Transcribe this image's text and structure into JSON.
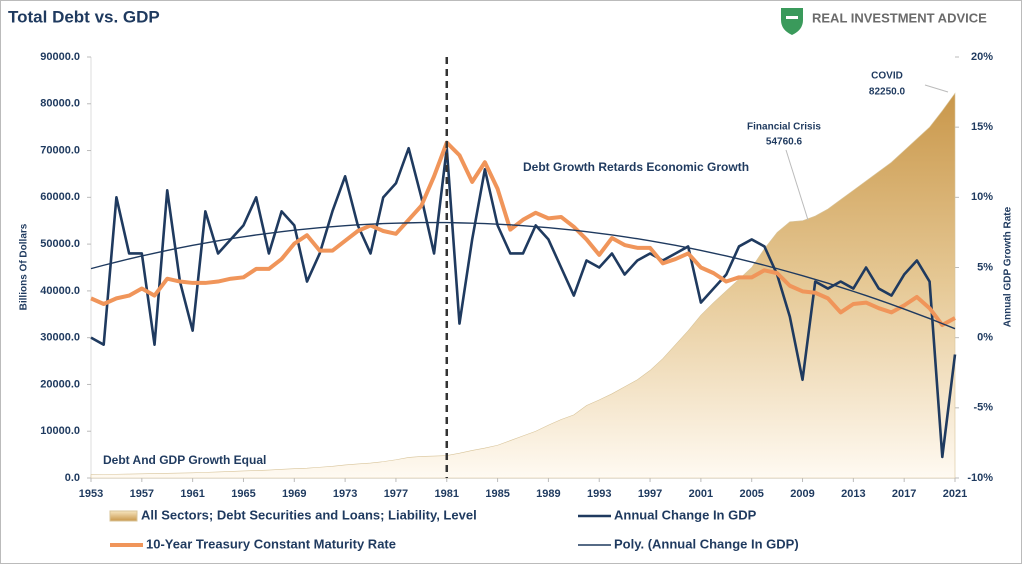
{
  "chart_data": {
    "type": "line",
    "title": "Total Debt vs. GDP",
    "brand": "REAL INVESTMENT ADVICE",
    "ylabel": "Billions Of Dollars",
    "y2label": "Annual GDP Growth Rate",
    "x": [
      1953,
      1954,
      1955,
      1956,
      1957,
      1958,
      1959,
      1960,
      1961,
      1962,
      1963,
      1964,
      1965,
      1966,
      1967,
      1968,
      1969,
      1970,
      1971,
      1972,
      1973,
      1974,
      1975,
      1976,
      1977,
      1978,
      1979,
      1980,
      1981,
      1982,
      1983,
      1984,
      1985,
      1986,
      1987,
      1988,
      1989,
      1990,
      1991,
      1992,
      1993,
      1994,
      1995,
      1996,
      1997,
      1998,
      1999,
      2000,
      2001,
      2002,
      2003,
      2004,
      2005,
      2006,
      2007,
      2008,
      2009,
      2010,
      2011,
      2012,
      2013,
      2014,
      2015,
      2016,
      2017,
      2018,
      2019,
      2020,
      2021
    ],
    "xlim": [
      1953,
      2021
    ],
    "xticks": [
      1953,
      1957,
      1961,
      1965,
      1969,
      1973,
      1977,
      1981,
      1985,
      1989,
      1993,
      1997,
      2001,
      2005,
      2009,
      2013,
      2017,
      2021
    ],
    "ylim": [
      0,
      90000
    ],
    "yticks": [
      {
        "value": 0,
        "label": "0.0"
      },
      {
        "value": 10000,
        "label": "10000.0"
      },
      {
        "value": 20000,
        "label": "20000.0"
      },
      {
        "value": 30000,
        "label": "30000.0"
      },
      {
        "value": 40000,
        "label": "40000.0"
      },
      {
        "value": 50000,
        "label": "50000.0"
      },
      {
        "value": 60000,
        "label": "60000.0"
      },
      {
        "value": 70000,
        "label": "70000.0"
      },
      {
        "value": 80000,
        "label": "80000.0"
      },
      {
        "value": 90000,
        "label": "90000.0"
      }
    ],
    "y2lim": [
      -10,
      20
    ],
    "y2ticks": [
      {
        "value": -10,
        "label": "-10%"
      },
      {
        "value": -5,
        "label": "-5%"
      },
      {
        "value": 0,
        "label": "0%"
      },
      {
        "value": 5,
        "label": "5%"
      },
      {
        "value": 10,
        "label": "10%"
      },
      {
        "value": 15,
        "label": "15%"
      },
      {
        "value": 20,
        "label": "20%"
      }
    ],
    "reference_x": 1981,
    "series": [
      {
        "name": "All Sectors; Debt Securities and Loans; Liability, Level",
        "type": "area",
        "color": "#c99a4a",
        "values": [
          700,
          750,
          800,
          850,
          900,
          950,
          1000,
          1050,
          1100,
          1200,
          1300,
          1400,
          1500,
          1600,
          1700,
          1850,
          2000,
          2100,
          2300,
          2500,
          2800,
          3000,
          3200,
          3500,
          3900,
          4400,
          4600,
          4700,
          4800,
          5300,
          5900,
          6400,
          7000,
          8000,
          9000,
          10000,
          11300,
          12500,
          13500,
          15500,
          16700,
          18000,
          19500,
          21000,
          23000,
          25500,
          28500,
          31500,
          34800,
          37500,
          40000,
          42500,
          45000,
          49000,
          52500,
          54760.6,
          55000,
          56000,
          57500,
          59500,
          61500,
          63500,
          65500,
          67500,
          70000,
          72500,
          75000,
          78500,
          82250
        ]
      },
      {
        "name": "Annual Change In GDP",
        "type": "line",
        "axis": "y2",
        "color": "#1f3a5f",
        "width": 2.6,
        "values": [
          0,
          -0.5,
          10,
          6,
          6,
          -0.5,
          10.5,
          4,
          0.5,
          9,
          6,
          7,
          8,
          10,
          6,
          9,
          8,
          4,
          6,
          9,
          11.5,
          8,
          6,
          10,
          11,
          13.5,
          10,
          6,
          13.5,
          1,
          7,
          12,
          8,
          6,
          6,
          8,
          7,
          5,
          3,
          5.5,
          5,
          6,
          4.5,
          5.5,
          6,
          5.5,
          6,
          6.5,
          2.5,
          3.5,
          4.5,
          6.5,
          7,
          6.5,
          4.5,
          1.5,
          -3,
          4,
          3.5,
          4,
          3.5,
          5,
          3.5,
          3,
          4.5,
          5.5,
          4,
          -8.5,
          -1.2
        ]
      },
      {
        "name": "10-Year Treasury Constant Maturity Rate",
        "type": "line",
        "axis": "y2",
        "color": "#f0955a",
        "width": 4,
        "values": [
          2.8,
          2.4,
          2.8,
          3.0,
          3.5,
          3.0,
          4.2,
          4.0,
          3.9,
          3.9,
          4.0,
          4.2,
          4.3,
          4.9,
          4.9,
          5.6,
          6.7,
          7.3,
          6.2,
          6.2,
          6.9,
          7.6,
          8.0,
          7.6,
          7.4,
          8.4,
          9.4,
          11.5,
          13.9,
          13.0,
          11.1,
          12.5,
          10.6,
          7.7,
          8.4,
          8.9,
          8.5,
          8.6,
          7.9,
          7.0,
          5.9,
          7.1,
          6.6,
          6.4,
          6.4,
          5.3,
          5.6,
          6.0,
          5.0,
          4.6,
          4.0,
          4.3,
          4.3,
          4.8,
          4.6,
          3.7,
          3.3,
          3.2,
          2.8,
          1.8,
          2.4,
          2.5,
          2.1,
          1.8,
          2.3,
          2.9,
          2.1,
          0.9,
          1.4
        ]
      },
      {
        "name": "Poly. (Annual Change In GDP)",
        "type": "line",
        "axis": "y2",
        "color": "#1f3a5f",
        "width": 1.4,
        "values": [
          4.92,
          5.16,
          5.39,
          5.61,
          5.82,
          6.02,
          6.22,
          6.4,
          6.58,
          6.74,
          6.9,
          7.05,
          7.19,
          7.32,
          7.44,
          7.55,
          7.66,
          7.75,
          7.84,
          7.91,
          7.98,
          8.04,
          8.09,
          8.13,
          8.16,
          8.18,
          8.2,
          8.2,
          8.2,
          8.18,
          8.16,
          8.13,
          8.09,
          8.04,
          7.98,
          7.91,
          7.84,
          7.75,
          7.66,
          7.55,
          7.44,
          7.32,
          7.19,
          7.05,
          6.9,
          6.74,
          6.58,
          6.4,
          6.22,
          6.02,
          5.82,
          5.61,
          5.39,
          5.16,
          4.92,
          4.67,
          4.42,
          4.15,
          3.88,
          3.59,
          3.3,
          3.0,
          2.69,
          2.37,
          2.04,
          1.7,
          1.36,
          1.0,
          0.64
        ]
      }
    ],
    "annotations": [
      {
        "lines": [
          "COVID",
          "82250.0"
        ]
      },
      {
        "lines": [
          "Financial Crisis",
          "54760.6"
        ]
      },
      {
        "lines": [
          "Debt Growth Retards Economic Growth"
        ]
      },
      {
        "lines": [
          "Debt And GDP Growth Equal"
        ]
      }
    ]
  }
}
